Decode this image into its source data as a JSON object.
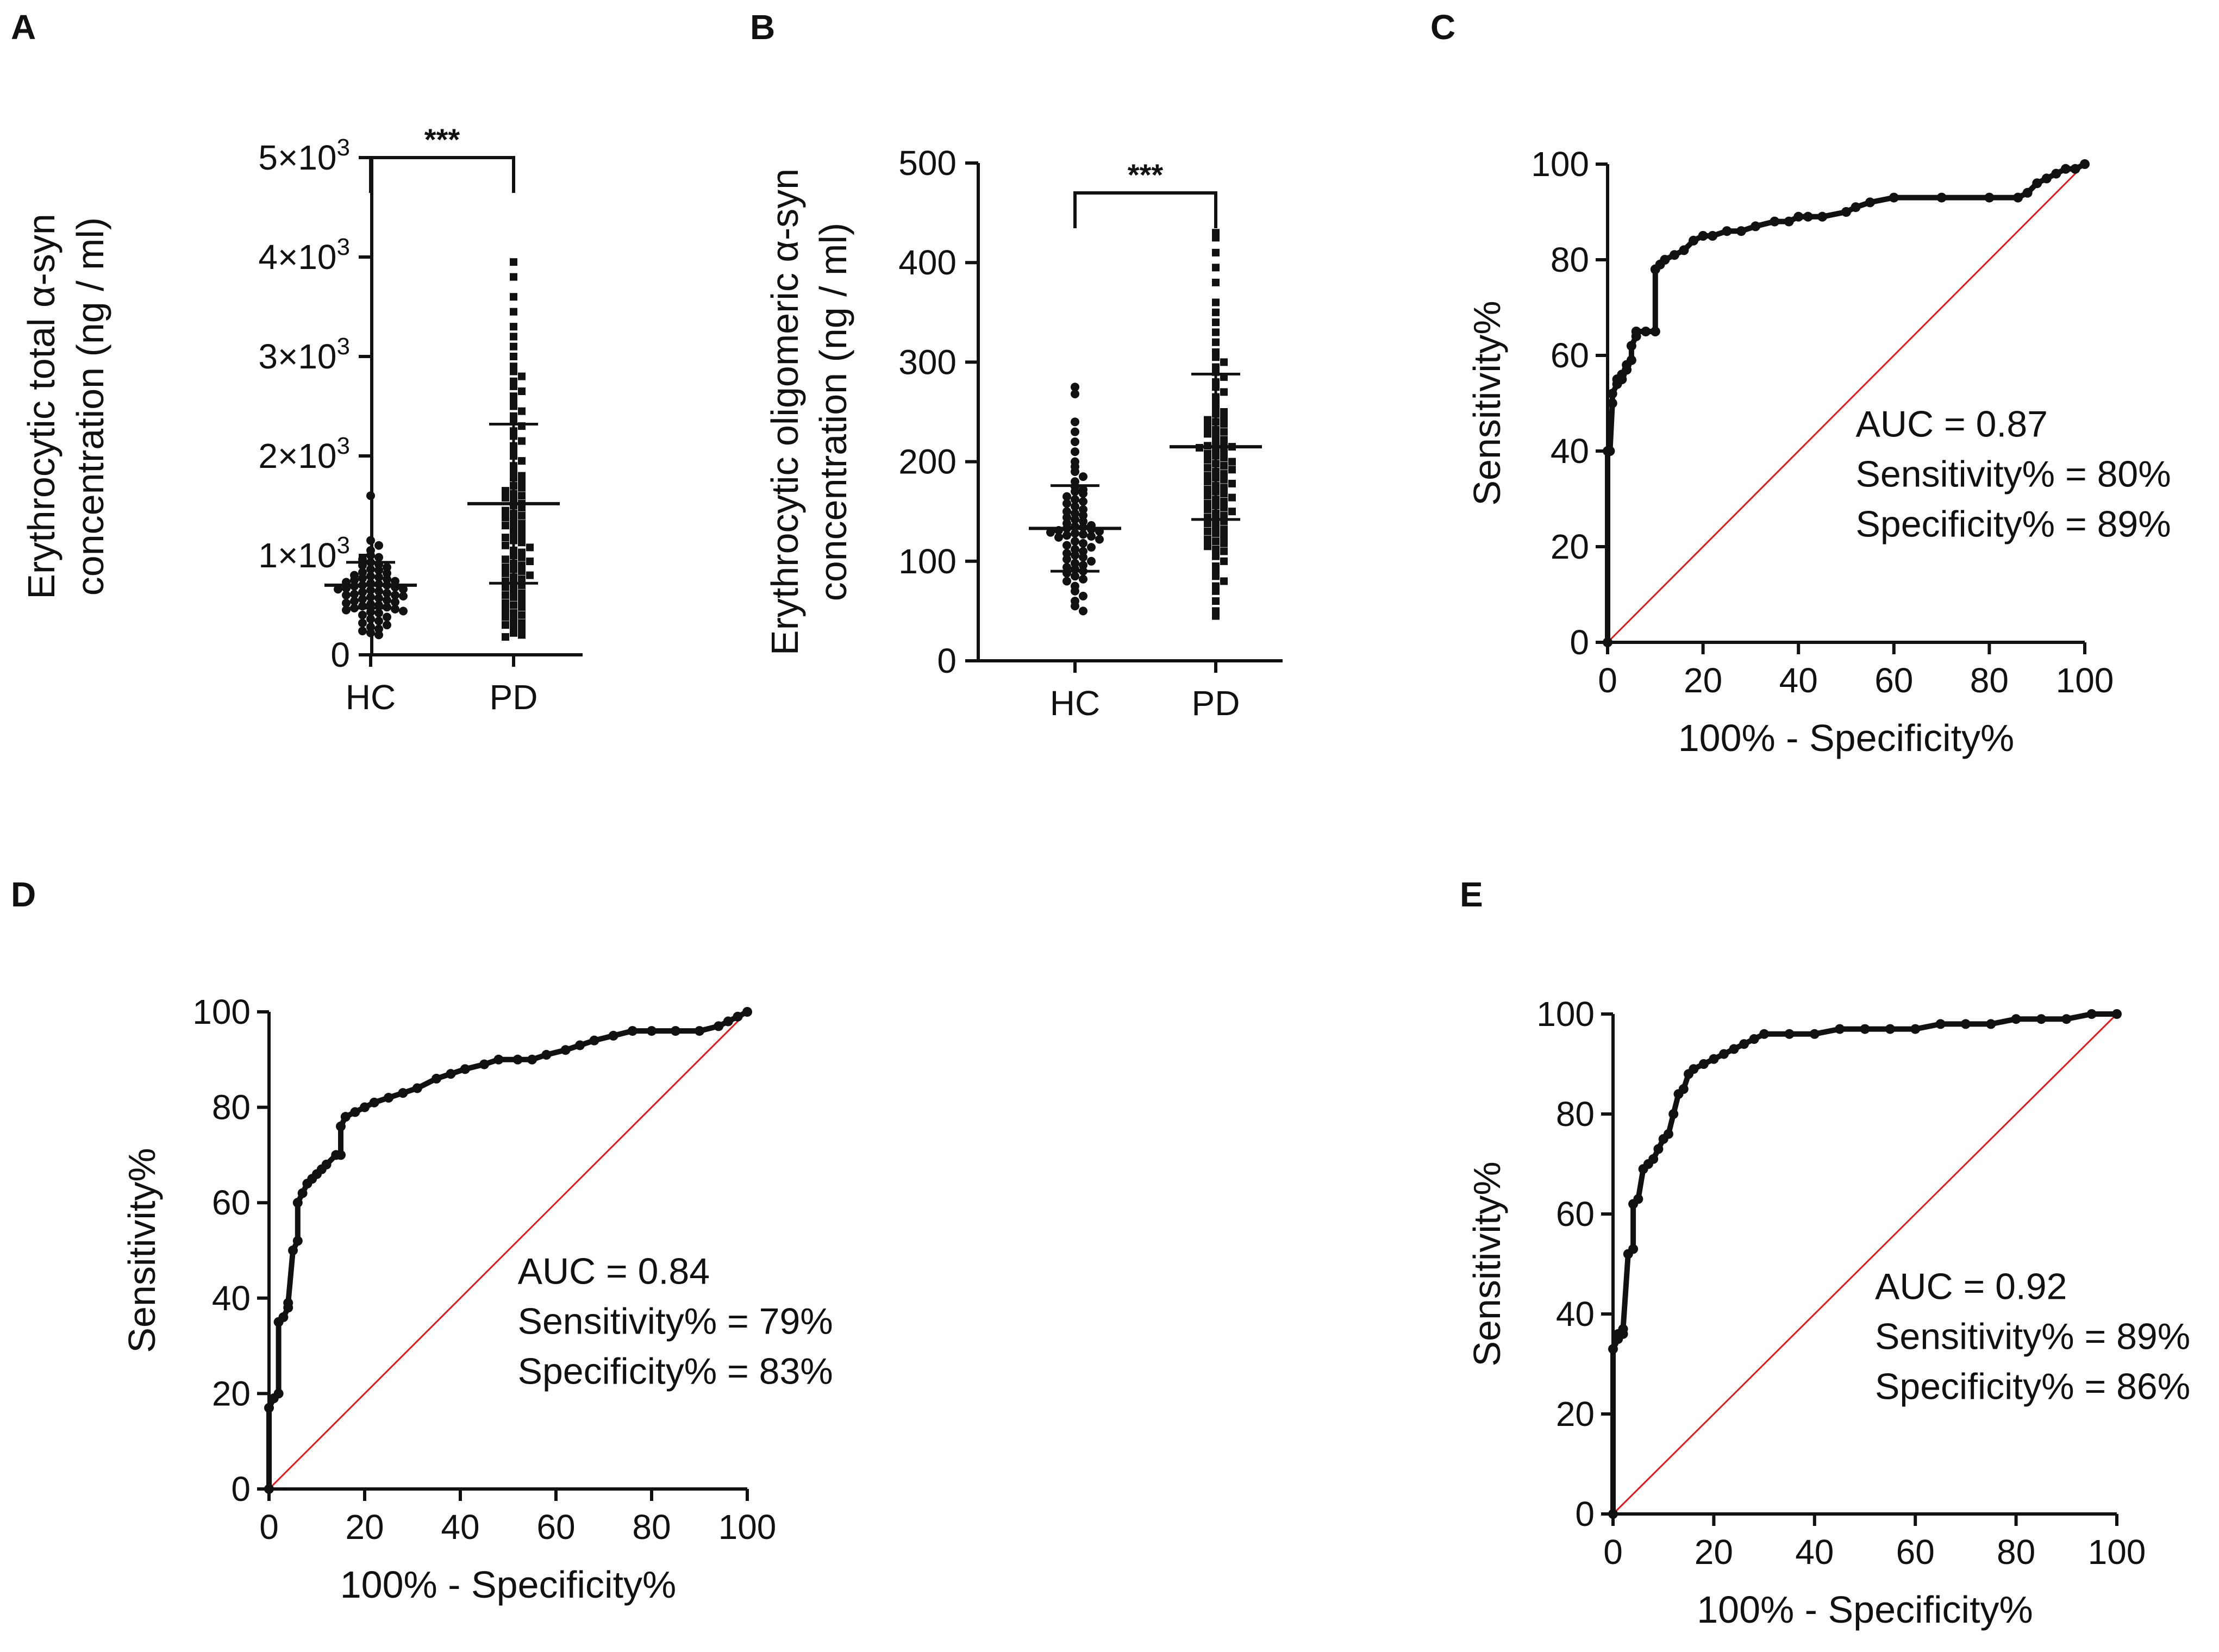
{
  "figure": {
    "panels": [
      "A",
      "B",
      "C",
      "D",
      "E"
    ]
  },
  "chart_data": [
    {
      "panel": "A",
      "type": "scatter",
      "subtype": "dot-plot",
      "categories": [
        "HC",
        "PD"
      ],
      "ylabel_line1": "Erythrocytic total α-syn",
      "ylabel_line2": "concentration (ng / ml)",
      "ylim": [
        0,
        5000
      ],
      "yticks": [
        0,
        1000,
        2000,
        3000,
        4000,
        5000
      ],
      "ytick_labels": [
        "0",
        "1×10",
        "2×10",
        "3×10",
        "4×10",
        "5×10"
      ],
      "ytick_exponent": "3",
      "significance": "***",
      "summary": [
        {
          "group": "HC",
          "mean": 700,
          "sd": 230
        },
        {
          "group": "PD",
          "mean": 1520,
          "sd": 800
        }
      ],
      "series": [
        {
          "name": "HC",
          "marker": "circle",
          "values": [
            1600,
            1150,
            1100,
            1050,
            1000,
            980,
            960,
            930,
            910,
            900,
            880,
            860,
            850,
            830,
            820,
            800,
            790,
            780,
            770,
            760,
            750,
            740,
            730,
            720,
            710,
            700,
            700,
            690,
            680,
            670,
            660,
            660,
            650,
            640,
            630,
            620,
            610,
            600,
            600,
            590,
            580,
            570,
            560,
            550,
            540,
            530,
            520,
            510,
            500,
            490,
            480,
            470,
            460,
            450,
            440,
            430,
            420,
            400,
            380,
            360,
            340,
            320,
            300,
            280,
            260,
            240,
            220,
            200
          ]
        },
        {
          "name": "PD",
          "marker": "square",
          "values": [
            3950,
            3800,
            3600,
            3450,
            3300,
            3200,
            3100,
            3000,
            2900,
            2850,
            2800,
            2750,
            2700,
            2650,
            2600,
            2550,
            2500,
            2450,
            2400,
            2350,
            2300,
            2250,
            2200,
            2150,
            2100,
            2050,
            2000,
            1950,
            1900,
            1850,
            1800,
            1780,
            1750,
            1700,
            1680,
            1650,
            1620,
            1600,
            1580,
            1550,
            1520,
            1500,
            1480,
            1450,
            1420,
            1400,
            1380,
            1350,
            1320,
            1300,
            1280,
            1250,
            1220,
            1200,
            1180,
            1150,
            1130,
            1100,
            1080,
            1050,
            1030,
            1000,
            980,
            960,
            940,
            920,
            900,
            880,
            860,
            840,
            820,
            800,
            780,
            760,
            740,
            720,
            700,
            680,
            650,
            620,
            600,
            580,
            550,
            520,
            500,
            480,
            450,
            420,
            400,
            380,
            350,
            320,
            300,
            280,
            250,
            220,
            200,
            180
          ]
        }
      ]
    },
    {
      "panel": "B",
      "type": "scatter",
      "subtype": "dot-plot",
      "categories": [
        "HC",
        "PD"
      ],
      "ylabel_line1": "Erythrocytic oligomeric α-syn",
      "ylabel_line2": "concentration (ng / ml)",
      "ylim": [
        0,
        500
      ],
      "yticks": [
        0,
        100,
        200,
        300,
        400,
        500
      ],
      "ytick_labels": [
        "0",
        "100",
        "200",
        "300",
        "400",
        "500"
      ],
      "significance": "***",
      "summary": [
        {
          "group": "HC",
          "mean": 133,
          "sd": 43
        },
        {
          "group": "PD",
          "mean": 215,
          "sd": 73
        }
      ],
      "series": [
        {
          "name": "HC",
          "marker": "circle",
          "values": [
            275,
            268,
            240,
            230,
            220,
            210,
            200,
            195,
            190,
            185,
            180,
            175,
            172,
            170,
            168,
            165,
            162,
            160,
            158,
            155,
            152,
            150,
            148,
            146,
            144,
            142,
            140,
            138,
            136,
            135,
            134,
            133,
            132,
            131,
            130,
            129,
            128,
            127,
            126,
            125,
            124,
            122,
            120,
            118,
            116,
            114,
            112,
            110,
            108,
            106,
            104,
            102,
            100,
            98,
            96,
            94,
            92,
            90,
            88,
            85,
            82,
            80,
            75,
            70,
            65,
            60,
            55,
            50
          ]
        },
        {
          "name": "PD",
          "marker": "square",
          "values": [
            430,
            425,
            410,
            395,
            380,
            360,
            350,
            340,
            330,
            320,
            310,
            305,
            300,
            295,
            290,
            285,
            280,
            275,
            270,
            265,
            260,
            255,
            250,
            248,
            245,
            242,
            240,
            238,
            235,
            232,
            230,
            228,
            225,
            222,
            220,
            218,
            216,
            215,
            214,
            212,
            210,
            208,
            206,
            204,
            202,
            200,
            198,
            196,
            194,
            192,
            190,
            188,
            186,
            184,
            182,
            180,
            178,
            176,
            174,
            172,
            170,
            168,
            166,
            164,
            162,
            160,
            158,
            156,
            154,
            152,
            150,
            148,
            146,
            144,
            142,
            140,
            138,
            135,
            132,
            130,
            128,
            125,
            122,
            120,
            118,
            115,
            112,
            110,
            105,
            100,
            95,
            90,
            85,
            80,
            75,
            70,
            60,
            50,
            45
          ]
        }
      ]
    },
    {
      "panel": "C",
      "type": "line",
      "subtype": "roc",
      "xlabel": "100% - Specificity%",
      "ylabel": "Sensitivity%",
      "xlim": [
        0,
        100
      ],
      "ylim": [
        0,
        100
      ],
      "xticks": [
        0,
        20,
        40,
        60,
        80,
        100
      ],
      "yticks": [
        0,
        20,
        40,
        60,
        80,
        100
      ],
      "reference_line": "diagonal",
      "annotations": [
        "AUC = 0.87",
        "Sensitivity% = 80%",
        "Specificity% = 89%"
      ],
      "x": [
        0,
        0,
        0.5,
        1,
        1,
        2,
        2,
        3,
        3,
        4,
        4,
        5,
        5,
        6,
        6,
        8,
        10,
        10,
        11,
        12,
        14,
        16,
        18,
        20,
        22,
        25,
        28,
        31,
        35,
        38,
        40,
        42,
        45,
        50,
        52,
        55,
        60,
        70,
        80,
        86,
        88,
        90,
        92,
        94,
        96,
        98,
        100
      ],
      "y": [
        0,
        40,
        40,
        50,
        52,
        54,
        55,
        55,
        56,
        57,
        58,
        59,
        62,
        64,
        65,
        65,
        65,
        78,
        79,
        80,
        81,
        82,
        84,
        85,
        85,
        86,
        86,
        87,
        88,
        88,
        89,
        89,
        89,
        90,
        91,
        92,
        93,
        93,
        93,
        93,
        94,
        96,
        97,
        98,
        99,
        99,
        100
      ]
    },
    {
      "panel": "D",
      "type": "line",
      "subtype": "roc",
      "xlabel": "100% - Specificity%",
      "ylabel": "Sensitivity%",
      "xlim": [
        0,
        100
      ],
      "ylim": [
        0,
        100
      ],
      "xticks": [
        0,
        20,
        40,
        60,
        80,
        100
      ],
      "yticks": [
        0,
        20,
        40,
        60,
        80,
        100
      ],
      "reference_line": "diagonal",
      "annotations": [
        "AUC = 0.84",
        "Sensitivity% = 79%",
        "Specificity% = 83%"
      ],
      "x": [
        0,
        0,
        1,
        2,
        2,
        3,
        4,
        4,
        5,
        6,
        6,
        7,
        8,
        9,
        10,
        11,
        12,
        14,
        15,
        15,
        16,
        18,
        20,
        22,
        25,
        28,
        31,
        35,
        38,
        41,
        45,
        48,
        52,
        55,
        58,
        62,
        65,
        68,
        72,
        76,
        80,
        85,
        90,
        94,
        96,
        98,
        100
      ],
      "y": [
        0,
        17,
        19,
        20,
        35,
        36,
        38,
        39,
        50,
        52,
        60,
        62,
        64,
        65,
        66,
        67,
        68,
        70,
        70,
        76,
        78,
        79,
        80,
        81,
        82,
        83,
        84,
        86,
        87,
        88,
        89,
        90,
        90,
        90,
        91,
        92,
        93,
        94,
        95,
        96,
        96,
        96,
        96,
        97,
        98,
        99,
        100
      ]
    },
    {
      "panel": "E",
      "type": "line",
      "subtype": "roc",
      "xlabel": "100% - Specificity%",
      "ylabel": "Sensitivity%",
      "xlim": [
        0,
        100
      ],
      "ylim": [
        0,
        100
      ],
      "xticks": [
        0,
        20,
        40,
        60,
        80,
        100
      ],
      "yticks": [
        0,
        20,
        40,
        60,
        80,
        100
      ],
      "reference_line": "diagonal",
      "annotations": [
        "AUC = 0.92",
        "Sensitivity% = 89%",
        "Specificity% = 86%"
      ],
      "x": [
        0,
        0,
        1,
        1,
        2,
        2,
        3,
        4,
        4,
        5,
        6,
        7,
        8,
        9,
        10,
        11,
        12,
        13,
        14,
        15,
        16,
        18,
        20,
        22,
        24,
        26,
        28,
        30,
        35,
        40,
        45,
        50,
        55,
        60,
        65,
        70,
        75,
        80,
        85,
        90,
        95,
        100
      ],
      "y": [
        0,
        33,
        35,
        36,
        36,
        37,
        52,
        53,
        62,
        63,
        69,
        70,
        71,
        73,
        75,
        76,
        80,
        84,
        85,
        88,
        89,
        90,
        91,
        92,
        93,
        94,
        95,
        96,
        96,
        96,
        97,
        97,
        97,
        97,
        98,
        98,
        98,
        99,
        99,
        99,
        100,
        100
      ]
    }
  ]
}
